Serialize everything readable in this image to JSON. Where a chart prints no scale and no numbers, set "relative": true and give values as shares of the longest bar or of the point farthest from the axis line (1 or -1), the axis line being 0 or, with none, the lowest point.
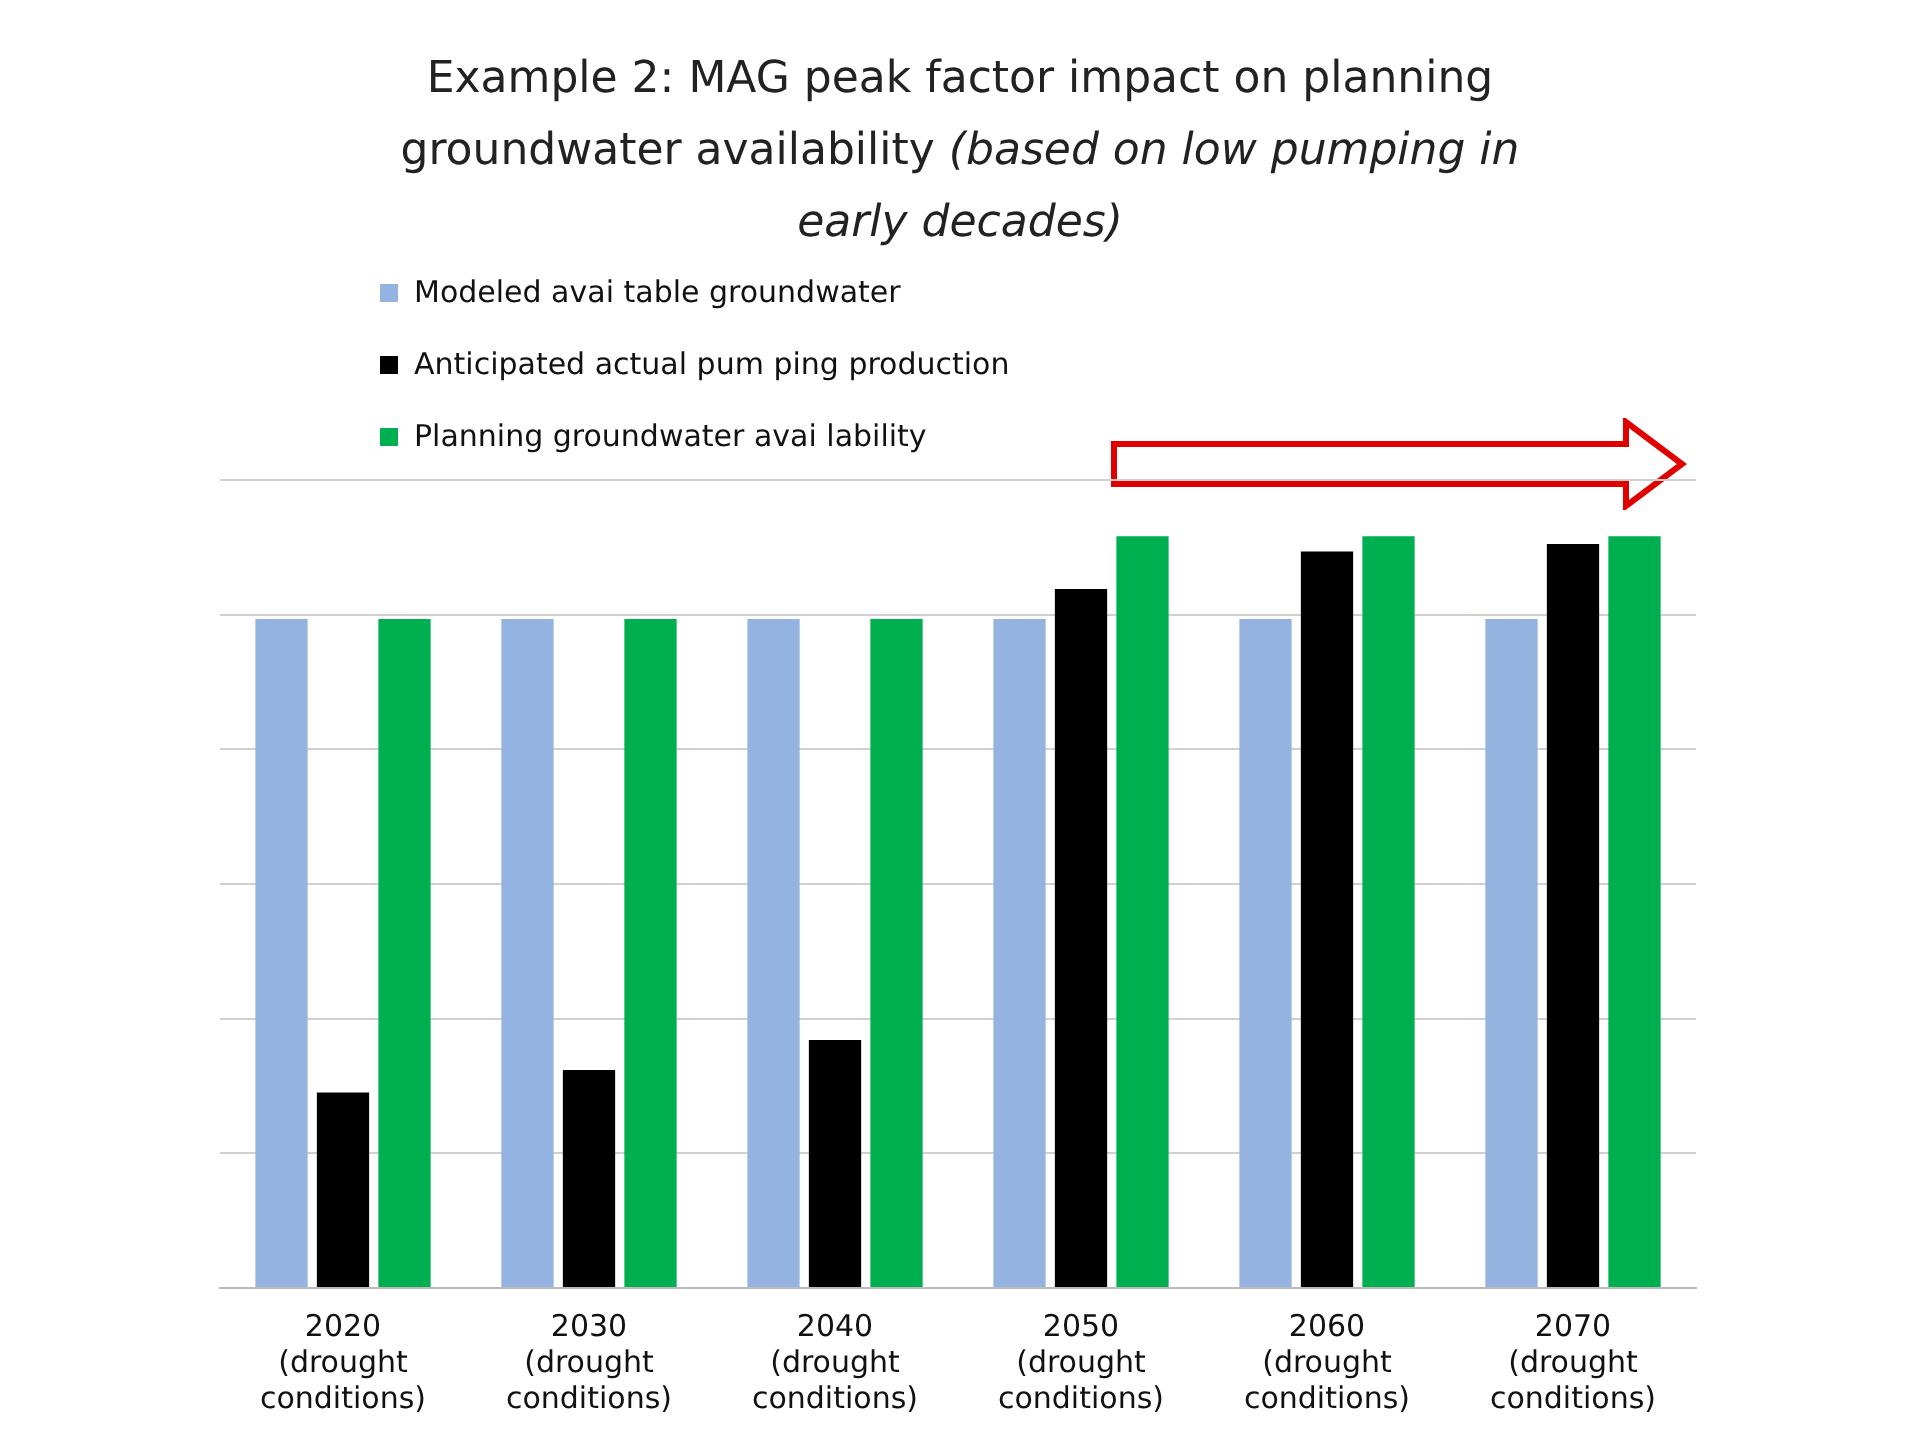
{
  "chart_data": {
    "type": "bar",
    "title": "Example 2: MAG peak factor impact on planning groundwater availability",
    "subtitle": "(based on low pumping in early decades)",
    "relative": true,
    "grid": "y",
    "legend": "top left",
    "categories": [
      "2020 (drought conditions)",
      "2030 (drought conditions)",
      "2040 (drought conditions)",
      "2050 (drought conditions)",
      "2060 (drought conditions)",
      "2070 (drought conditions)"
    ],
    "series": [
      {
        "name": "Modeled avai table groundwater",
        "color": "#95b3e0",
        "values": [
          0.89,
          0.89,
          0.89,
          0.89,
          0.89,
          0.89
        ]
      },
      {
        "name": "Anticipated actual pum ping production",
        "color": "#000000",
        "values": [
          0.26,
          0.29,
          0.33,
          0.93,
          0.98,
          0.99
        ]
      },
      {
        "name": "Planning groundwater avai lability",
        "color": "#00b050",
        "values": [
          0.89,
          0.89,
          0.89,
          1,
          1,
          1
        ]
      }
    ]
  }
}
